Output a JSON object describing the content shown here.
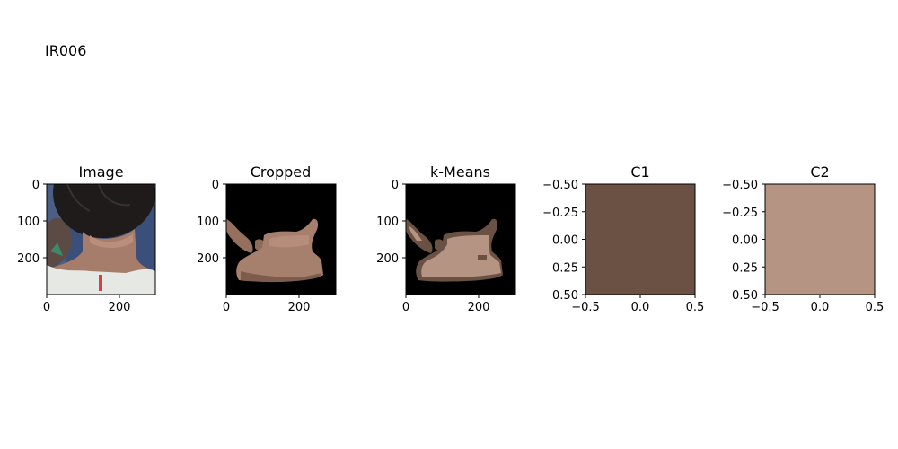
{
  "figure_title": "IR006",
  "chart_data": [
    {
      "type": "image",
      "title": "Image",
      "xticks": [
        "0",
        "200"
      ],
      "yticks": [
        "0",
        "100",
        "200"
      ],
      "xlim": [
        0,
        300
      ],
      "ylim": [
        0,
        300
      ],
      "content": "neck photo",
      "colors": {
        "background": "#3a4f7a",
        "hair": "#1e1b1a",
        "skin": "#a67c6a",
        "shirt": "#e6e8e4"
      }
    },
    {
      "type": "image",
      "title": "Cropped",
      "xticks": [
        "0",
        "200"
      ],
      "yticks": [
        "0",
        "100",
        "200"
      ],
      "xlim": [
        0,
        300
      ],
      "ylim": [
        0,
        300
      ],
      "content": "segmented skin on black",
      "colors": {
        "background": "#000000",
        "skin": "#a77f6d"
      }
    },
    {
      "type": "image",
      "title": "k-Means",
      "xticks": [
        "0",
        "200"
      ],
      "yticks": [
        "0",
        "100",
        "200"
      ],
      "xlim": [
        0,
        300
      ],
      "ylim": [
        0,
        300
      ],
      "content": "two-color cluster map on black",
      "colors": {
        "background": "#000000",
        "cluster1": "#6b5044",
        "cluster2": "#b59484"
      }
    },
    {
      "type": "heatmap",
      "title": "C1",
      "color": "#6b5044",
      "xticks": [
        "−0.5",
        "0.0",
        "0.5"
      ],
      "yticks": [
        "−0.50",
        "−0.25",
        "0.00",
        "0.25",
        "0.50"
      ],
      "xlim": [
        -0.5,
        0.5
      ],
      "ylim": [
        -0.5,
        0.5
      ]
    },
    {
      "type": "heatmap",
      "title": "C2",
      "color": "#b59484",
      "xticks": [
        "−0.5",
        "0.0",
        "0.5"
      ],
      "yticks": [
        "−0.50",
        "−0.25",
        "0.00",
        "0.25",
        "0.50"
      ],
      "xlim": [
        -0.5,
        0.5
      ],
      "ylim": [
        -0.5,
        0.5
      ]
    }
  ]
}
